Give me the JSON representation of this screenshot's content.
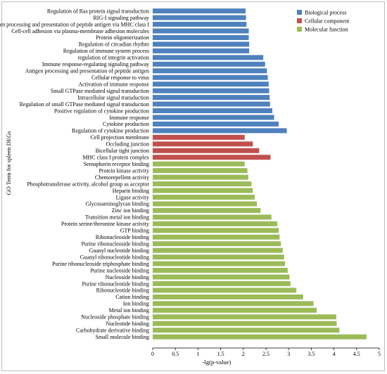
{
  "chart_data": {
    "type": "bar",
    "orientation": "horizontal",
    "xlabel": "-lg(p-value)",
    "ylabel": "GO Term for spleen DEGs",
    "xlim": [
      0,
      5
    ],
    "xticks": [
      "0",
      "0.5",
      "1",
      "1.5",
      "2",
      "2.5",
      "3",
      "3.5",
      "4",
      "4.5",
      "5"
    ],
    "legend_position": "top-right",
    "grid": false,
    "legend": [
      {
        "name": "Biological process",
        "color": "#4f81bd"
      },
      {
        "name": "Cellular component",
        "color": "#c0504d"
      },
      {
        "name": "Molecular function",
        "color": "#9bbb59"
      }
    ],
    "series": [
      {
        "name": "Biological process",
        "color": "#4f81bd",
        "categories": [
          "Regulation of Ras protein signal transduction",
          "RIG-I signaling pathway",
          "Antigen processing and presentation of peptide antigen via MHC class I",
          "Cell-cell adhesion via plasma-membrane adhesion molecules",
          "Protein oligomerization",
          "Regulation of circadian rhythm",
          "Regulation of immune system process",
          "regulation of integrin activation",
          "Immune response-regulating signaling pathway",
          "Antigen processing and presentation of peptide antigen",
          "Cellular response to virus",
          "Activation of immune response",
          "Small GTPase mediated signal transduction",
          "Intracellular signal transduction",
          "Regulation of small GTPase mediated signal transduction",
          "Positive regulation of cytokine production",
          "Immune response",
          "Cytokine production",
          "Regulation of cytokine production"
        ],
        "values": [
          2.05,
          2.06,
          2.07,
          2.12,
          2.12,
          2.13,
          2.13,
          2.44,
          2.48,
          2.52,
          2.54,
          2.56,
          2.57,
          2.58,
          2.59,
          2.64,
          2.68,
          2.78,
          2.96
        ]
      },
      {
        "name": "Cellular component",
        "color": "#c0504d",
        "categories": [
          "Cell projection membrane",
          "Occluding junction",
          "Bicellular tight junction",
          "MHC class I protein complex"
        ],
        "values": [
          2.03,
          2.21,
          2.35,
          2.6
        ]
      },
      {
        "name": "Molecular function",
        "color": "#9bbb59",
        "categories": [
          "Semaphorin receptor binding",
          "Protein kinase activity",
          "Chemorepellent activity",
          "Phosphotransferase activity, alcohol group as acceptor",
          "Heparin binding",
          "Ligase activity",
          "Glycosaminoglycan binding",
          "Zinc ion binding",
          "Transition metal ion binding",
          "Protein serine/threonine kinase activity",
          "GTP binding",
          "Ribonucleoside binding",
          "Purine ribonucleoside binding",
          "Guanyl nucleotide binding",
          "Guanyl ribonucleotide binding",
          "Purine ribonucleoside triphosphate binding",
          "Purine nucleoside binding",
          "Nucleoside binding",
          "Purine ribonucleotide binding",
          "Ribonucleotide binding",
          "Cation binding",
          "Ion binding",
          "Metal ion binding",
          "Nucleoside phosphate binding",
          "Nucleotide binding",
          "Carbohydrate derivative binding",
          "Small molecule binding"
        ],
        "values": [
          2.03,
          2.09,
          2.11,
          2.18,
          2.21,
          2.25,
          2.3,
          2.38,
          2.62,
          2.75,
          2.78,
          2.8,
          2.83,
          2.87,
          2.9,
          2.92,
          2.98,
          3.02,
          3.04,
          3.17,
          3.32,
          3.55,
          3.62,
          4.05,
          4.06,
          4.12,
          4.72
        ]
      }
    ]
  }
}
